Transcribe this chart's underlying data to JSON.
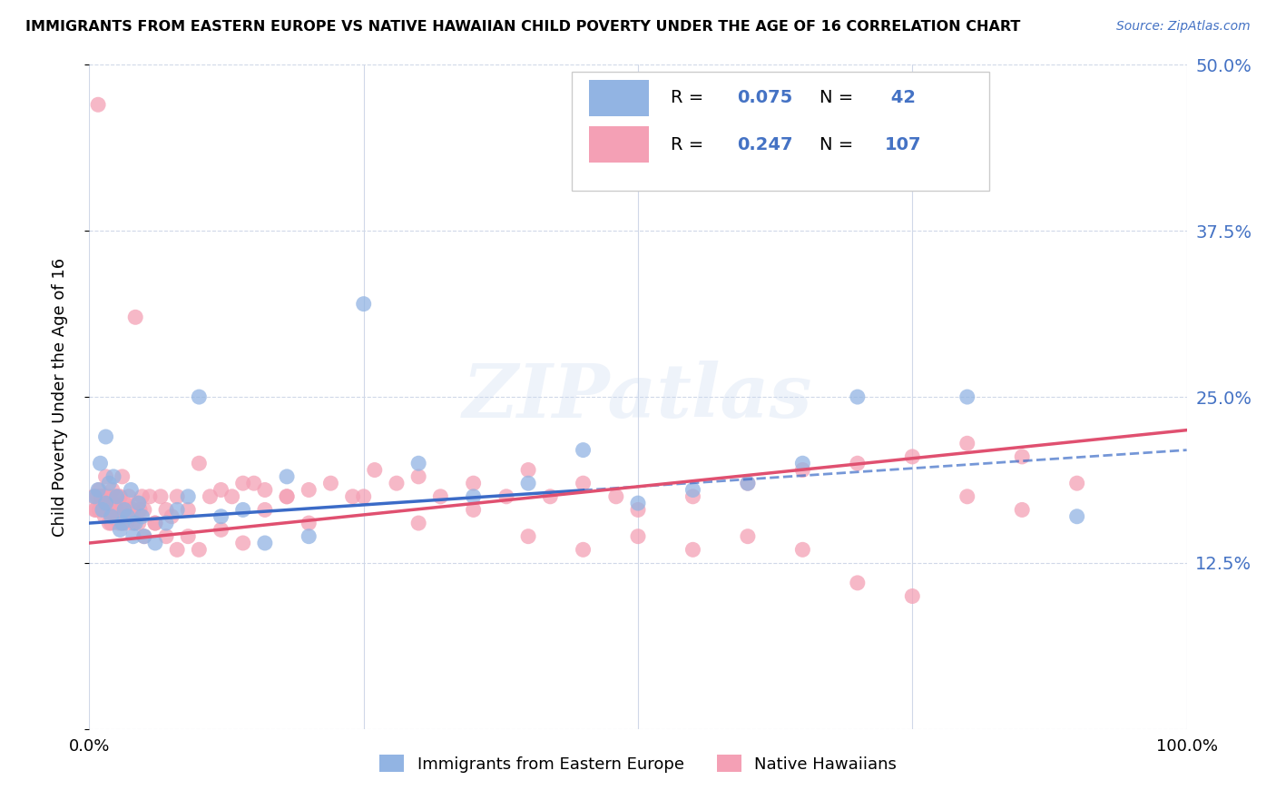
{
  "title": "IMMIGRANTS FROM EASTERN EUROPE VS NATIVE HAWAIIAN CHILD POVERTY UNDER THE AGE OF 16 CORRELATION CHART",
  "source": "Source: ZipAtlas.com",
  "ylabel": "Child Poverty Under the Age of 16",
  "xlim": [
    0.0,
    1.0
  ],
  "ylim": [
    0.0,
    0.5
  ],
  "ytick_positions": [
    0.0,
    0.125,
    0.25,
    0.375,
    0.5
  ],
  "yticklabels_right": [
    "",
    "12.5%",
    "25.0%",
    "37.5%",
    "50.0%"
  ],
  "blue_R": "0.075",
  "blue_N": "42",
  "pink_R": "0.247",
  "pink_N": "107",
  "blue_color": "#92b4e3",
  "pink_color": "#f4a0b5",
  "blue_line_color": "#3b6bc7",
  "pink_line_color": "#e05070",
  "legend_label_blue": "Immigrants from Eastern Europe",
  "legend_label_pink": "Native Hawaiians",
  "watermark": "ZIPatlas",
  "blue_scatter_x": [
    0.005,
    0.008,
    0.01,
    0.012,
    0.015,
    0.015,
    0.018,
    0.02,
    0.022,
    0.025,
    0.028,
    0.03,
    0.032,
    0.035,
    0.038,
    0.04,
    0.042,
    0.045,
    0.048,
    0.05,
    0.06,
    0.07,
    0.08,
    0.09,
    0.1,
    0.12,
    0.14,
    0.16,
    0.18,
    0.2,
    0.25,
    0.3,
    0.35,
    0.4,
    0.45,
    0.5,
    0.55,
    0.6,
    0.65,
    0.7,
    0.8,
    0.9
  ],
  "blue_scatter_y": [
    0.175,
    0.18,
    0.2,
    0.165,
    0.17,
    0.22,
    0.185,
    0.16,
    0.19,
    0.175,
    0.15,
    0.155,
    0.165,
    0.16,
    0.18,
    0.145,
    0.155,
    0.17,
    0.16,
    0.145,
    0.14,
    0.155,
    0.165,
    0.175,
    0.25,
    0.16,
    0.165,
    0.14,
    0.19,
    0.145,
    0.32,
    0.2,
    0.175,
    0.185,
    0.21,
    0.17,
    0.18,
    0.185,
    0.2,
    0.25,
    0.25,
    0.16
  ],
  "pink_scatter_x": [
    0.004,
    0.006,
    0.008,
    0.009,
    0.01,
    0.011,
    0.012,
    0.013,
    0.014,
    0.015,
    0.016,
    0.017,
    0.018,
    0.019,
    0.02,
    0.021,
    0.022,
    0.023,
    0.024,
    0.025,
    0.026,
    0.027,
    0.028,
    0.029,
    0.03,
    0.032,
    0.034,
    0.036,
    0.038,
    0.04,
    0.042,
    0.044,
    0.046,
    0.048,
    0.05,
    0.055,
    0.06,
    0.065,
    0.07,
    0.075,
    0.08,
    0.09,
    0.1,
    0.11,
    0.12,
    0.13,
    0.14,
    0.15,
    0.16,
    0.18,
    0.2,
    0.22,
    0.24,
    0.26,
    0.28,
    0.3,
    0.32,
    0.35,
    0.38,
    0.4,
    0.42,
    0.45,
    0.48,
    0.5,
    0.55,
    0.6,
    0.65,
    0.7,
    0.75,
    0.8,
    0.85,
    0.9,
    0.005,
    0.007,
    0.009,
    0.012,
    0.015,
    0.02,
    0.025,
    0.03,
    0.035,
    0.04,
    0.045,
    0.05,
    0.06,
    0.07,
    0.08,
    0.09,
    0.1,
    0.12,
    0.14,
    0.16,
    0.18,
    0.2,
    0.25,
    0.3,
    0.35,
    0.4,
    0.45,
    0.5,
    0.55,
    0.6,
    0.65,
    0.7,
    0.75,
    0.8,
    0.85
  ],
  "pink_scatter_y": [
    0.175,
    0.165,
    0.47,
    0.18,
    0.175,
    0.17,
    0.175,
    0.165,
    0.16,
    0.19,
    0.165,
    0.175,
    0.155,
    0.17,
    0.165,
    0.18,
    0.17,
    0.175,
    0.16,
    0.165,
    0.175,
    0.155,
    0.175,
    0.165,
    0.19,
    0.17,
    0.155,
    0.175,
    0.16,
    0.165,
    0.31,
    0.17,
    0.165,
    0.175,
    0.165,
    0.175,
    0.155,
    0.175,
    0.165,
    0.16,
    0.175,
    0.165,
    0.2,
    0.175,
    0.18,
    0.175,
    0.185,
    0.185,
    0.165,
    0.175,
    0.18,
    0.185,
    0.175,
    0.195,
    0.185,
    0.19,
    0.175,
    0.185,
    0.175,
    0.195,
    0.175,
    0.185,
    0.175,
    0.165,
    0.175,
    0.185,
    0.195,
    0.2,
    0.205,
    0.215,
    0.205,
    0.185,
    0.165,
    0.175,
    0.165,
    0.175,
    0.165,
    0.155,
    0.165,
    0.155,
    0.165,
    0.155,
    0.155,
    0.145,
    0.155,
    0.145,
    0.135,
    0.145,
    0.135,
    0.15,
    0.14,
    0.18,
    0.175,
    0.155,
    0.175,
    0.155,
    0.165,
    0.145,
    0.135,
    0.145,
    0.135,
    0.145,
    0.135,
    0.11,
    0.1,
    0.175,
    0.165
  ]
}
